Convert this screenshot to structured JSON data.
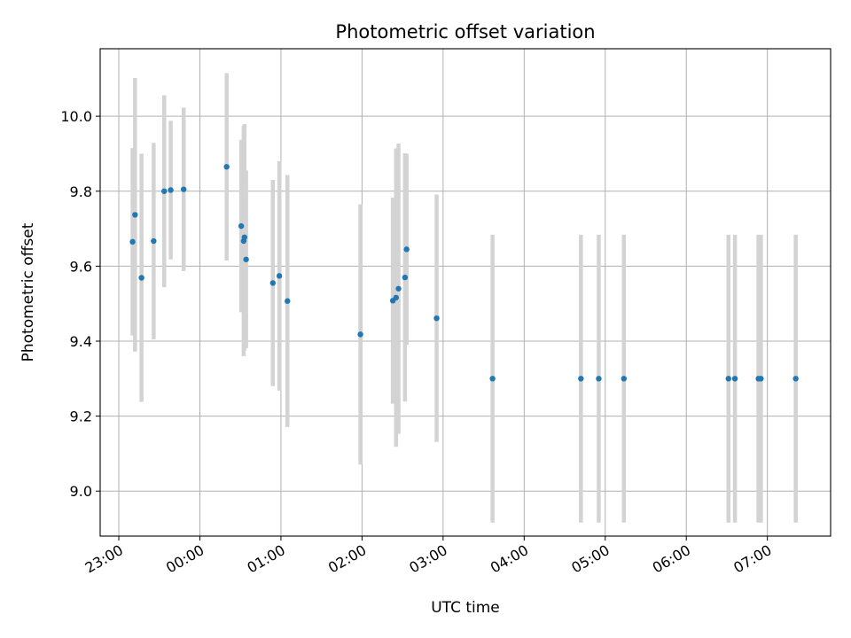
{
  "chart_data": {
    "type": "scatter",
    "title": "Photometric offset variation",
    "xlabel": "UTC time",
    "ylabel": "Photometric offset",
    "grid": true,
    "x_unit": "UTC time (hours, 23:00 = -1.0)",
    "xlim": [
      -1.23,
      7.78
    ],
    "ylim": [
      8.88,
      10.18
    ],
    "x_ticks": [
      -1,
      0,
      1,
      2,
      3,
      4,
      5,
      6,
      7
    ],
    "x_tick_labels": [
      "23:00",
      "00:00",
      "01:00",
      "02:00",
      "03:00",
      "04:00",
      "05:00",
      "06:00",
      "07:00"
    ],
    "y_ticks": [
      9.0,
      9.2,
      9.4,
      9.6,
      9.8,
      10.0
    ],
    "y_tick_labels": [
      "9.0",
      "9.2",
      "9.4",
      "9.6",
      "9.8",
      "10.0"
    ],
    "colors": {
      "points": "#1f77b4",
      "errorbars": "#d3d3d3",
      "grid": "#b0b0b0"
    },
    "series": [
      {
        "points": [
          {
            "x": -0.83,
            "y": 9.665,
            "lo": 9.415,
            "hi": 9.915
          },
          {
            "x": -0.8,
            "y": 9.737,
            "lo": 9.372,
            "hi": 10.102
          },
          {
            "x": -0.72,
            "y": 9.569,
            "lo": 9.238,
            "hi": 9.9
          },
          {
            "x": -0.57,
            "y": 9.667,
            "lo": 9.405,
            "hi": 9.929
          },
          {
            "x": -0.44,
            "y": 9.8,
            "lo": 9.544,
            "hi": 10.056
          },
          {
            "x": -0.36,
            "y": 9.803,
            "lo": 9.618,
            "hi": 9.988
          },
          {
            "x": -0.2,
            "y": 9.805,
            "lo": 9.587,
            "hi": 10.023
          },
          {
            "x": 0.33,
            "y": 9.865,
            "lo": 9.615,
            "hi": 10.115
          },
          {
            "x": 0.51,
            "y": 9.707,
            "lo": 9.477,
            "hi": 9.937
          },
          {
            "x": 0.54,
            "y": 9.667,
            "lo": 9.36,
            "hi": 9.974
          },
          {
            "x": 0.55,
            "y": 9.677,
            "lo": 9.375,
            "hi": 9.979
          },
          {
            "x": 0.57,
            "y": 9.618,
            "lo": 9.381,
            "hi": 9.855
          },
          {
            "x": 0.9,
            "y": 9.555,
            "lo": 9.28,
            "hi": 9.83
          },
          {
            "x": 0.98,
            "y": 9.574,
            "lo": 9.268,
            "hi": 9.88
          },
          {
            "x": 1.08,
            "y": 9.507,
            "lo": 9.171,
            "hi": 9.843
          },
          {
            "x": 1.98,
            "y": 9.418,
            "lo": 9.071,
            "hi": 9.765
          },
          {
            "x": 2.38,
            "y": 9.508,
            "lo": 9.233,
            "hi": 9.783
          },
          {
            "x": 2.42,
            "y": 9.516,
            "lo": 9.118,
            "hi": 9.914
          },
          {
            "x": 2.45,
            "y": 9.54,
            "lo": 9.153,
            "hi": 9.927
          },
          {
            "x": 2.53,
            "y": 9.57,
            "lo": 9.239,
            "hi": 9.901
          },
          {
            "x": 2.55,
            "y": 9.645,
            "lo": 9.39,
            "hi": 9.9
          },
          {
            "x": 2.92,
            "y": 9.461,
            "lo": 9.131,
            "hi": 9.791
          },
          {
            "x": 3.61,
            "y": 9.3,
            "lo": 8.916,
            "hi": 9.684
          },
          {
            "x": 4.7,
            "y": 9.3,
            "lo": 8.916,
            "hi": 9.684
          },
          {
            "x": 4.92,
            "y": 9.3,
            "lo": 8.916,
            "hi": 9.684
          },
          {
            "x": 5.23,
            "y": 9.3,
            "lo": 8.916,
            "hi": 9.684
          },
          {
            "x": 6.52,
            "y": 9.3,
            "lo": 8.916,
            "hi": 9.684
          },
          {
            "x": 6.6,
            "y": 9.3,
            "lo": 8.916,
            "hi": 9.684
          },
          {
            "x": 6.89,
            "y": 9.3,
            "lo": 8.916,
            "hi": 9.684
          },
          {
            "x": 6.92,
            "y": 9.3,
            "lo": 8.916,
            "hi": 9.684
          },
          {
            "x": 7.35,
            "y": 9.3,
            "lo": 8.916,
            "hi": 9.684
          }
        ]
      }
    ]
  }
}
